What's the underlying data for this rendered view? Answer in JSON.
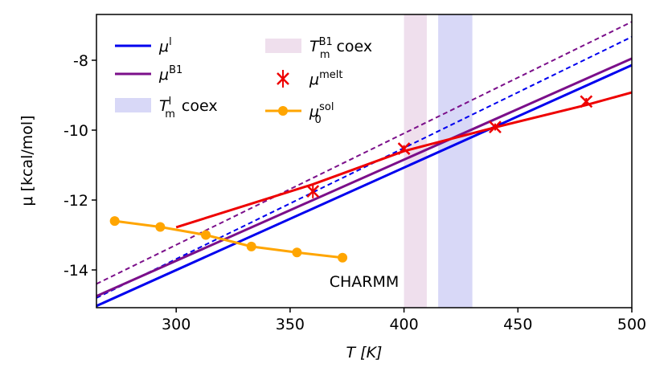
{
  "chart_data": {
    "type": "line",
    "xlabel": "T [K]",
    "ylabel": "μ [kcal/mol]",
    "xlim": [
      265,
      500
    ],
    "ylim": [
      -15.08,
      -6.69
    ],
    "xticks": [
      300,
      350,
      400,
      450,
      500
    ],
    "yticks": [
      -8,
      -10,
      -12,
      -14
    ],
    "annotation": "CHARMM",
    "series": [
      {
        "name": "μ",
        "sup": "l",
        "color": "#0000ee",
        "x": [
          265,
          500
        ],
        "values": [
          -15.03,
          -8.14
        ]
      },
      {
        "color": "#0000ee",
        "dashed": true,
        "x": [
          265,
          500
        ],
        "values": [
          -14.8,
          -7.33
        ]
      },
      {
        "name": "μ",
        "sup": "B1",
        "color": "#7b0f8a",
        "x": [
          265,
          500
        ],
        "values": [
          -14.75,
          -7.95
        ]
      },
      {
        "color": "#7b0f8a",
        "dashed": true,
        "x": [
          265,
          500
        ],
        "values": [
          -14.4,
          -6.9
        ]
      },
      {
        "color": "#ee0000",
        "x": [
          300,
          360,
          400,
          440,
          480,
          500
        ],
        "values": [
          -12.78,
          -11.55,
          -10.6,
          -9.92,
          -9.28,
          -8.92
        ]
      },
      {
        "name": "μ",
        "sup": "melt",
        "color": "#ee0000",
        "marker": "x",
        "x": [
          360,
          400,
          440,
          480
        ],
        "values": [
          -11.75,
          -10.53,
          -9.91,
          -9.18
        ],
        "errors": [
          0.2,
          0.1,
          0.1,
          0.1
        ]
      },
      {
        "name": "μ",
        "sup": "sol",
        "sub": "0",
        "color": "#ffa500",
        "marker": "o",
        "x": [
          273,
          293,
          313,
          333,
          353,
          373
        ],
        "values": [
          -12.6,
          -12.77,
          -13.0,
          -13.33,
          -13.5,
          -13.65
        ]
      }
    ],
    "bands": [
      {
        "name": "T",
        "sup": "l",
        "sub": "m",
        "suffix": "coex",
        "color": "#c8c8f4",
        "x": [
          415,
          430
        ]
      },
      {
        "name": "T",
        "sup": "B1",
        "sub": "m",
        "suffix": "coex",
        "color": "#e8d2e6",
        "x": [
          400,
          410
        ]
      }
    ]
  }
}
